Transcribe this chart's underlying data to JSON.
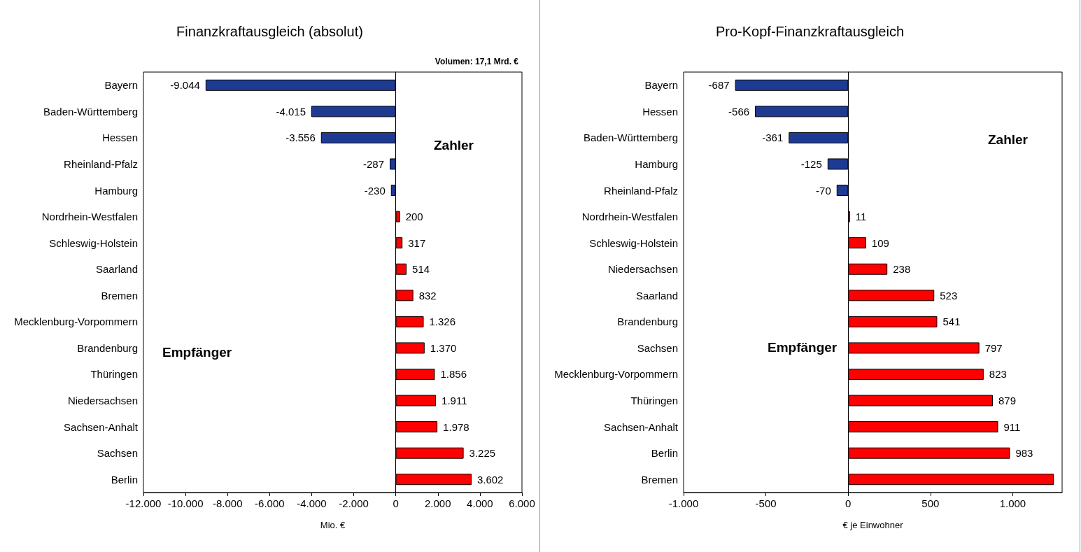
{
  "chart_data": [
    {
      "type": "bar",
      "orientation": "horizontal",
      "title": "Finanzkraftausgleich (absolut)",
      "xlabel": "Mio. €",
      "categories": [
        "Bayern",
        "Baden-Württemberg",
        "Hessen",
        "Rheinland-Pfalz",
        "Hamburg",
        "Nordrhein-Westfalen",
        "Schleswig-Holstein",
        "Saarland",
        "Bremen",
        "Mecklenburg-Vorpommern",
        "Brandenburg",
        "Thüringen",
        "Niedersachsen",
        "Sachsen-Anhalt",
        "Sachsen",
        "Berlin"
      ],
      "values": [
        -9044,
        -4015,
        -3556,
        -287,
        -230,
        200,
        317,
        514,
        832,
        1326,
        1370,
        1856,
        1911,
        1978,
        3225,
        3602
      ],
      "value_labels": [
        "-9.044",
        "-4.015",
        "-3.556",
        "-287",
        "-230",
        "200",
        "317",
        "514",
        "832",
        "1.326",
        "1.370",
        "1.856",
        "1.911",
        "1.978",
        "3.225",
        "3.602"
      ],
      "colors": [
        "#1f3a93",
        "#1f3a93",
        "#1f3a93",
        "#1f3a93",
        "#1f3a93",
        "#ff0000",
        "#ff0000",
        "#ff0000",
        "#ff0000",
        "#ff0000",
        "#ff0000",
        "#ff0000",
        "#ff0000",
        "#ff0000",
        "#ff0000",
        "#ff0000"
      ],
      "xlim": [
        -12000,
        6000
      ],
      "xticks": [
        {
          "value": -12000,
          "label": "-12.000"
        },
        {
          "value": -10000,
          "label": "-10.000"
        },
        {
          "value": -8000,
          "label": "-8.000"
        },
        {
          "value": -6000,
          "label": "-6.000"
        },
        {
          "value": -4000,
          "label": "-4.000"
        },
        {
          "value": -2000,
          "label": "-2.000"
        },
        0,
        {
          "value": 2000,
          "label": "2.000"
        },
        {
          "value": 4000,
          "label": "4.000"
        },
        {
          "value": 6000,
          "label": "6.000"
        }
      ],
      "annotations": [
        "Volumen: 17,1 Mrd. €",
        "Zahler",
        "Empfänger"
      ]
    },
    {
      "type": "bar",
      "orientation": "horizontal",
      "title": "Pro-Kopf-Finanzkraftausgleich",
      "xlabel": "€ je Einwohner",
      "categories": [
        "Bayern",
        "Hessen",
        "Baden-Württemberg",
        "Hamburg",
        "Rheinland-Pfalz",
        "Nordrhein-Westfalen",
        "Schleswig-Holstein",
        "Niedersachsen",
        "Saarland",
        "Brandenburg",
        "Sachsen",
        "Mecklenburg-Vorpommern",
        "Thüringen",
        "Sachsen-Anhalt",
        "Berlin",
        "Bremen"
      ],
      "values": [
        -687,
        -566,
        -361,
        -125,
        -70,
        11,
        109,
        238,
        523,
        541,
        797,
        823,
        879,
        911,
        983,
        1250
      ],
      "value_labels": [
        "-687",
        "-566",
        "-361",
        "-125",
        "-70",
        "11",
        "109",
        "238",
        "523",
        "541",
        "797",
        "823",
        "879",
        "911",
        "983",
        null
      ],
      "colors": [
        "#1f3a93",
        "#1f3a93",
        "#1f3a93",
        "#1f3a93",
        "#1f3a93",
        "#ff0000",
        "#ff0000",
        "#ff0000",
        "#ff0000",
        "#ff0000",
        "#ff0000",
        "#ff0000",
        "#ff0000",
        "#ff0000",
        "#ff0000",
        "#ff0000"
      ],
      "xlim": [
        -1000,
        1300
      ],
      "xticks": [
        {
          "value": -1000,
          "label": "-1.000"
        },
        -500,
        0,
        500,
        {
          "value": 1000,
          "label": "1.000"
        }
      ],
      "annotations": [
        "Zahler",
        "Empfänger"
      ]
    }
  ]
}
